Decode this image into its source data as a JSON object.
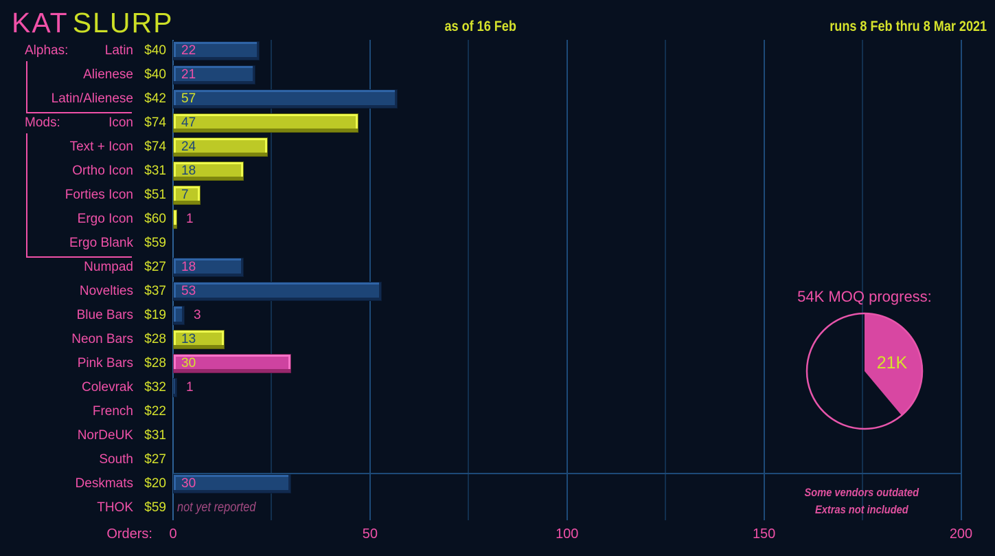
{
  "title": {
    "brand": "KAT",
    "set_name": "SLURP"
  },
  "header": {
    "as_of": "as of 16 Feb",
    "runs": "runs 8 Feb thru 8 Mar 2021"
  },
  "colors": {
    "background": "#07101f",
    "pink": "#f051a8",
    "yellow": "#d6e32c",
    "navy_text": "#1c4678",
    "bar_blue": "#1d4577",
    "bar_yellow": "#bdc926",
    "bar_pink": "#ce43a0",
    "gridline_minor": "#12304f",
    "gridline_major": "#1d4a78",
    "axis_line": "#2d6195",
    "muted_pink": "#a34a82"
  },
  "chart_data": [
    {
      "type": "bar",
      "orientation": "horizontal",
      "title": "KAT SLURP",
      "xlabel": "Orders:",
      "xlim": [
        0,
        208
      ],
      "xticks": [
        0,
        50,
        100,
        150,
        200
      ],
      "minor_gridlines": [
        25,
        75,
        125,
        175
      ],
      "grid": true,
      "rows": [
        {
          "group": "Alphas:",
          "name": "Latin",
          "price": "$40",
          "value": 22,
          "bar_color": "blue",
          "value_color": "pink"
        },
        {
          "name": "Alienese",
          "price": "$40",
          "value": 21,
          "bar_color": "blue",
          "value_color": "pink"
        },
        {
          "name": "Latin/Alienese",
          "price": "$42",
          "value": 57,
          "bar_color": "blue",
          "value_color": "yellow"
        },
        {
          "group": "Mods:",
          "name": "Icon",
          "price": "$74",
          "value": 47,
          "bar_color": "yellow",
          "value_color": "navy"
        },
        {
          "name": "Text + Icon",
          "price": "$74",
          "value": 24,
          "bar_color": "yellow",
          "value_color": "navy"
        },
        {
          "name": "Ortho Icon",
          "price": "$31",
          "value": 18,
          "bar_color": "yellow",
          "value_color": "navy"
        },
        {
          "name": "Forties Icon",
          "price": "$51",
          "value": 7,
          "bar_color": "yellow",
          "value_color": "navy"
        },
        {
          "name": "Ergo Icon",
          "price": "$60",
          "value": 1,
          "bar_color": "yellow",
          "value_color": "pink",
          "value_outside": true
        },
        {
          "name": "Ergo Blank",
          "price": "$59",
          "value": null
        },
        {
          "name": "Numpad",
          "price": "$27",
          "value": 18,
          "bar_color": "blue",
          "value_color": "pink"
        },
        {
          "name": "Novelties",
          "price": "$37",
          "value": 53,
          "bar_color": "blue",
          "value_color": "pink"
        },
        {
          "name": "Blue Bars",
          "price": "$19",
          "value": 3,
          "bar_color": "blue",
          "value_color": "pink",
          "value_outside": true
        },
        {
          "name": "Neon Bars",
          "price": "$28",
          "value": 13,
          "bar_color": "yellow",
          "value_color": "navy"
        },
        {
          "name": "Pink Bars",
          "price": "$28",
          "value": 30,
          "bar_color": "pink",
          "value_color": "yellow"
        },
        {
          "name": "Colevrak",
          "price": "$32",
          "value": 1,
          "bar_color": "blue",
          "value_color": "pink",
          "value_outside": true
        },
        {
          "name": "French",
          "price": "$22",
          "value": null
        },
        {
          "name": "NorDeUK",
          "price": "$31",
          "value": null
        },
        {
          "name": "South",
          "price": "$27",
          "value": null
        },
        {
          "name": "Deskmats",
          "price": "$20",
          "value": 30,
          "bar_color": "blue",
          "value_color": "pink",
          "divider_above": true
        },
        {
          "name": "THOK",
          "price": "$59",
          "value": null,
          "note": "not yet reported"
        }
      ],
      "groups": [
        {
          "label": "Alphas:",
          "from_row": 0,
          "to_row": 2
        },
        {
          "label": "Mods:",
          "from_row": 3,
          "to_row": 8
        }
      ]
    },
    {
      "type": "pie",
      "title": "54K MOQ progress:",
      "total_label": "54K",
      "slices": [
        {
          "label": "21K",
          "value": 21,
          "filled": true
        },
        {
          "label": "",
          "value": 33,
          "filled": false
        }
      ],
      "start_angle_deg": 0,
      "direction": "clockwise",
      "annotations": [
        "Some vendors outdated",
        "Extras not included"
      ]
    }
  ]
}
